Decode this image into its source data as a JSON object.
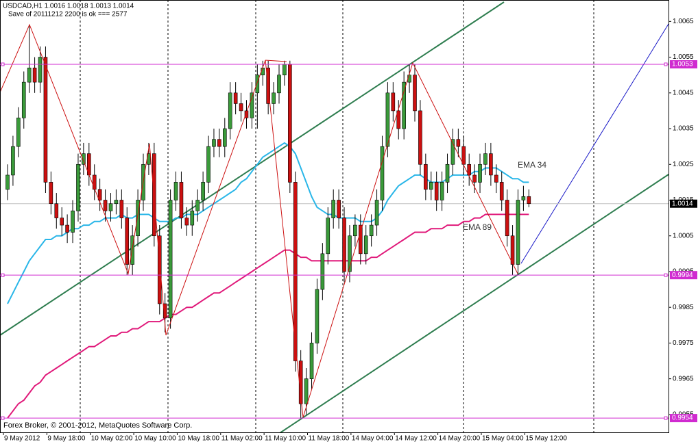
{
  "chart_data": {
    "type": "candlestick",
    "header": "USDCAD,H1  1.0016 1.0018 1.0013 1.0014",
    "subheader": "Save of 20111212 2200 is ok  === 2577",
    "footer": "Forex Broker, © 2001-2012, MetaQuotes Software Corp.",
    "categories": [
      "9 May 2012",
      null,
      null,
      null,
      null,
      null,
      null,
      null,
      "9 May 18:00",
      null,
      null,
      null,
      null,
      null,
      null,
      null,
      "10 May 02:00",
      null,
      null,
      null,
      null,
      null,
      null,
      null,
      "10 May 10:00",
      null,
      null,
      null,
      null,
      null,
      null,
      null,
      "10 May 18:00",
      null,
      null,
      null,
      null,
      null,
      null,
      null,
      "11 May 02:00",
      null,
      null,
      null,
      null,
      null,
      null,
      null,
      "11 May 10:00",
      null,
      null,
      null,
      null,
      null,
      null,
      null,
      "11 May 18:00",
      null,
      null,
      null,
      null,
      null,
      null,
      null,
      "14 May 04:00",
      null,
      null,
      null,
      null,
      null,
      null,
      null,
      "14 May 12:00",
      null,
      null,
      null,
      null,
      null,
      null,
      null,
      "14 May 20:00",
      null,
      null,
      null,
      null,
      null,
      null,
      null,
      "15 May 04:00",
      null,
      null,
      null,
      null,
      null,
      null,
      null,
      "15 May 12:00"
    ],
    "open": [
      1.0018,
      1.0022,
      1.003,
      1.0038,
      1.0048,
      1.0052,
      1.0048,
      1.0055,
      1.002,
      1.0014,
      1.001,
      1.0008,
      1.0006,
      1.0012,
      1.0025,
      1.0028,
      1.0022,
      1.0018,
      1.0015,
      1.0012,
      1.0014,
      1.0015,
      1.001,
      0.9997,
      1.0005,
      1.0015,
      1.0025,
      1.0028,
      1.0005,
      0.9986,
      0.9982,
      1.0015,
      1.002,
      1.001,
      1.0008,
      1.0012,
      1.0015,
      1.002,
      1.003,
      1.0032,
      1.003,
      1.0035,
      1.0045,
      1.0042,
      1.004,
      1.0038,
      1.0045,
      1.005,
      1.0052,
      1.0042,
      1.0045,
      1.005,
      1.0053,
      1.002,
      0.997,
      0.9958,
      0.9965,
      0.9975,
      0.999,
      1,
      1.001,
      1.0015,
      1.001,
      0.9995,
      1.0005,
      1.0008,
      1,
      1.0005,
      1.0008,
      1.0015,
      1.003,
      1.0045,
      1.004,
      1.0035,
      1.0048,
      1.005,
      1.004,
      1.0025,
      1.0018,
      1.002,
      1.0015,
      1.002,
      1.0025,
      1.0032,
      1.003,
      1.0025,
      1.0022,
      1.002,
      1.0025,
      1.0028,
      1.0022,
      1.002,
      1.0015,
      1.0005,
      0.9997,
      1.0015,
      1.0016
    ],
    "high": [
      1.0025,
      1.0033,
      1.0041,
      1.0051,
      1.0064,
      1.0055,
      1.0058,
      1.0058,
      1.0023,
      1.0017,
      1.0013,
      1.0011,
      1.0015,
      1.0028,
      1.0031,
      1.0031,
      1.0025,
      1.0021,
      1.0018,
      1.0017,
      1.0018,
      1.0018,
      1.0013,
      1.0008,
      1.0018,
      1.0028,
      1.0031,
      1.0031,
      1.0008,
      0.9989,
      1.0018,
      1.0023,
      1.0023,
      1.0013,
      1.0015,
      1.0018,
      1.0023,
      1.0033,
      1.0035,
      1.0035,
      1.0038,
      1.0048,
      1.0048,
      1.0045,
      1.0043,
      1.0048,
      1.0053,
      1.0054,
      1.0054,
      1.0048,
      1.0053,
      1.0054,
      1.0054,
      1.0023,
      0.9973,
      0.9968,
      0.9978,
      0.9993,
      1.0003,
      1.0013,
      1.0018,
      1.0018,
      1.0013,
      1.0008,
      1.0011,
      1.0011,
      1.0008,
      1.0011,
      1.0018,
      1.0033,
      1.0048,
      1.0048,
      1.0043,
      1.0051,
      1.0053,
      1.0053,
      1.0043,
      1.0028,
      1.0023,
      1.0023,
      1.0023,
      1.0028,
      1.0035,
      1.0035,
      1.0033,
      1.0028,
      1.0025,
      1.0028,
      1.0031,
      1.0031,
      1.0025,
      1.0023,
      1.0018,
      1.0008,
      1.0018,
      1.0019,
      1.0018
    ],
    "low": [
      1.0015,
      1.0019,
      1.0027,
      1.0035,
      1.0045,
      1.0045,
      1.0045,
      1.0017,
      1.0011,
      1.0007,
      1.0005,
      1.0003,
      1.0003,
      1.0009,
      1.0022,
      1.0019,
      1.0015,
      1.0012,
      1.0009,
      1.0009,
      1.0011,
      1.0007,
      0.9994,
      0.9994,
      1.0002,
      1.0012,
      1.0022,
      1.0002,
      0.9983,
      0.9978,
      0.9979,
      1.0012,
      1.0007,
      1.0005,
      1.0005,
      1.0009,
      1.0012,
      1.0017,
      1.0027,
      1.0027,
      1.0027,
      1.0032,
      1.0039,
      1.0037,
      1.0035,
      1.0035,
      1.0035,
      1.0047,
      1.0039,
      1.0039,
      1.0042,
      1.0047,
      1.0017,
      0.9967,
      0.9954,
      0.9955,
      0.9962,
      0.9972,
      0.9987,
      0.9997,
      1.0007,
      1.0007,
      0.9992,
      0.9992,
      1.0002,
      0.9997,
      0.9997,
      1.0002,
      1.0005,
      1.0012,
      1.0027,
      1.0037,
      1.0032,
      1.0032,
      1.0045,
      1.0037,
      1.0022,
      1.0015,
      1.0015,
      1.0012,
      1.0012,
      1.0017,
      1.0022,
      1.0027,
      1.0022,
      1.0019,
      1.0017,
      1.0017,
      1.0022,
      1.0019,
      1.0017,
      1.0012,
      1.0002,
      0.9994,
      0.9994,
      1.0012,
      1.0013
    ],
    "close": [
      1.0022,
      1.003,
      1.0038,
      1.0048,
      1.0052,
      1.0048,
      1.0055,
      1.002,
      1.0014,
      1.001,
      1.0008,
      1.0006,
      1.0012,
      1.0025,
      1.0028,
      1.0022,
      1.0018,
      1.0015,
      1.0012,
      1.0014,
      1.0015,
      1.001,
      0.9997,
      1.0005,
      1.0015,
      1.0025,
      1.0028,
      1.0005,
      0.9986,
      0.9982,
      1.0015,
      1.002,
      1.001,
      1.0008,
      1.0012,
      1.0015,
      1.002,
      1.003,
      1.0032,
      1.003,
      1.0035,
      1.0045,
      1.0042,
      1.004,
      1.0038,
      1.0045,
      1.005,
      1.0052,
      1.0042,
      1.0045,
      1.005,
      1.0053,
      1.002,
      0.997,
      0.9958,
      0.9965,
      0.9975,
      0.999,
      1,
      1.001,
      1.0015,
      1.001,
      0.9995,
      1.0005,
      1.0008,
      1,
      1.0005,
      1.0008,
      1.0015,
      1.003,
      1.0045,
      1.004,
      1.0035,
      1.0048,
      1.005,
      1.004,
      1.0025,
      1.0018,
      1.002,
      1.0015,
      1.002,
      1.0025,
      1.0032,
      1.003,
      1.0025,
      1.0022,
      1.002,
      1.0025,
      1.0028,
      1.0022,
      1.002,
      1.0015,
      1.0005,
      0.9997,
      1.0015,
      1.0016,
      1.0014
    ],
    "up_color": "#3a9a3a",
    "down_color": "#cc1010",
    "series": [
      {
        "name": "EMA 34",
        "color": "#29b6e8",
        "values": [
          0.9986,
          0.9989,
          0.9992,
          0.9995,
          0.9998,
          1,
          1.0002,
          1.0004,
          1.0004,
          1.0005,
          1.0005,
          1.0006,
          1.0007,
          1.0007,
          1.0008,
          1.0008,
          1.0009,
          1.0009,
          1.001,
          1.001,
          1.001,
          1.0011,
          1.001,
          1.001,
          1.0011,
          1.0011,
          1.0011,
          1.001,
          1.0009,
          1.0009,
          1.0009,
          1.001,
          1.001,
          1.0011,
          1.0011,
          1.0011,
          1.0012,
          1.0013,
          1.0014,
          1.0015,
          1.0016,
          1.0017,
          1.0018,
          1.002,
          1.0021,
          1.0023,
          1.0025,
          1.0027,
          1.0028,
          1.0029,
          1.003,
          1.0031,
          1.003,
          1.0028,
          1.0024,
          1.002,
          1.0016,
          1.0013,
          1.0012,
          1.0011,
          1.0011,
          1.001,
          1.001,
          1.001,
          1.001,
          1.0009,
          1.0009,
          1.0009,
          1.001,
          1.0012,
          1.0015,
          1.0017,
          1.0019,
          1.002,
          1.0021,
          1.0022,
          1.0022,
          1.0021,
          1.002,
          1.002,
          1.002,
          1.0021,
          1.0022,
          1.0022,
          1.0022,
          1.0022,
          1.0023,
          1.0023,
          1.0024,
          1.0024,
          1.0024,
          1.0023,
          1.0022,
          1.0021,
          1.0021,
          1.002,
          1.002
        ]
      },
      {
        "name": "EMA 89",
        "color": "#e0197a",
        "values": [
          0.9954,
          0.9956,
          0.9958,
          0.9959,
          0.9961,
          0.9963,
          0.9964,
          0.9966,
          0.9967,
          0.9968,
          0.9969,
          0.997,
          0.9971,
          0.9972,
          0.9973,
          0.9974,
          0.9974,
          0.9975,
          0.9976,
          0.9977,
          0.9977,
          0.9978,
          0.9978,
          0.9979,
          0.9979,
          0.998,
          0.9981,
          0.9981,
          0.9981,
          0.9982,
          0.9983,
          0.9983,
          0.9984,
          0.9985,
          0.9985,
          0.9986,
          0.9987,
          0.9988,
          0.9989,
          0.9989,
          0.999,
          0.9991,
          0.9992,
          0.9993,
          0.9994,
          0.9995,
          0.9996,
          0.9997,
          0.9998,
          0.9999,
          1,
          1.0001,
          1.0001,
          1,
          0.9999,
          0.9999,
          0.9998,
          0.9998,
          0.9998,
          0.9998,
          0.9998,
          0.9998,
          0.9998,
          0.9998,
          0.9998,
          0.9998,
          0.9998,
          0.9999,
          0.9999,
          1,
          1.0001,
          1.0002,
          1.0003,
          1.0004,
          1.0005,
          1.0006,
          1.0006,
          1.0006,
          1.0007,
          1.0007,
          1.0007,
          1.0008,
          1.0008,
          1.0008,
          1.0009,
          1.0009,
          1.001,
          1.001,
          1.0011,
          1.0011,
          1.0011,
          1.0011,
          1.0011,
          1.0011,
          1.0011,
          1.0011,
          1.0011
        ]
      }
    ],
    "ylim": [
      0.995,
      1.0071
    ],
    "yticks": [
      1.0065,
      1.0055,
      1.0045,
      1.0035,
      1.0025,
      1.0015,
      1.0005,
      0.9995,
      0.9985,
      0.9975,
      0.9965,
      0.9955
    ],
    "hlines": [
      1.0053,
      0.9994,
      0.9954
    ],
    "hline_color": "#d02bd0",
    "last_price": 1.0014,
    "grid": false
  }
}
